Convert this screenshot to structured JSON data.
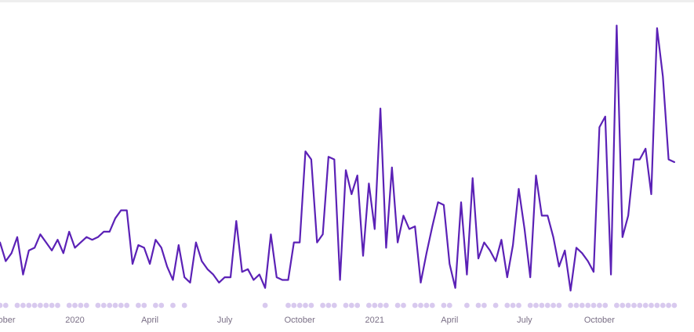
{
  "chart_data": {
    "type": "line",
    "title": "",
    "xlabel": "",
    "ylabel": "",
    "series_color": "#5b21b6",
    "marker_color": "#d8c9ee",
    "ylim": [
      0,
      100
    ],
    "x_ticks": [
      {
        "label": "October",
        "index": 0
      },
      {
        "label": "2020",
        "index": 13
      },
      {
        "label": "April",
        "index": 26
      },
      {
        "label": "July",
        "index": 39
      },
      {
        "label": "October",
        "index": 52
      },
      {
        "label": "2021",
        "index": 65
      },
      {
        "label": "April",
        "index": 78
      },
      {
        "label": "July",
        "index": 91
      },
      {
        "label": "October",
        "index": 104
      }
    ],
    "values": [
      20,
      13,
      16,
      22,
      8,
      17,
      18,
      23,
      20,
      17,
      21,
      16,
      24,
      18,
      20,
      22,
      21,
      22,
      24,
      24,
      29,
      32,
      32,
      12,
      19,
      18,
      12,
      21,
      18,
      11,
      6,
      19,
      7,
      5,
      20,
      13,
      10,
      8,
      5,
      7,
      7,
      28,
      9,
      10,
      6,
      8,
      3,
      23,
      7,
      6,
      6,
      20,
      20,
      54,
      51,
      20,
      23,
      52,
      51,
      6,
      47,
      38,
      45,
      15,
      42,
      25,
      70,
      18,
      48,
      20,
      30,
      25,
      26,
      5,
      16,
      26,
      35,
      34,
      12,
      3,
      35,
      8,
      44,
      14,
      20,
      17,
      13,
      21,
      7,
      19,
      40,
      25,
      7,
      45,
      30,
      30,
      22,
      11,
      17,
      2,
      18,
      16,
      13,
      9,
      63,
      67,
      8,
      101,
      22,
      30,
      51,
      51,
      55,
      38,
      100,
      82,
      51,
      50
    ],
    "markers_present": [
      1,
      1,
      0,
      1,
      1,
      1,
      1,
      1,
      1,
      1,
      1,
      0,
      1,
      1,
      1,
      1,
      0,
      1,
      1,
      1,
      1,
      1,
      1,
      0,
      1,
      1,
      0,
      1,
      1,
      0,
      1,
      0,
      1,
      0,
      0,
      0,
      0,
      0,
      0,
      0,
      0,
      0,
      0,
      0,
      0,
      0,
      1,
      0,
      0,
      0,
      1,
      1,
      1,
      1,
      1,
      0,
      1,
      1,
      1,
      0,
      1,
      1,
      1,
      0,
      1,
      1,
      1,
      1,
      0,
      1,
      1,
      0,
      1,
      1,
      1,
      1,
      0,
      1,
      1,
      0,
      0,
      1,
      0,
      1,
      1,
      0,
      1,
      0,
      1,
      1,
      1,
      0,
      1,
      1,
      1,
      1,
      1,
      1,
      0,
      1,
      1,
      1,
      1,
      1,
      1,
      1,
      0,
      1,
      1,
      1,
      1,
      1,
      1,
      1,
      1,
      1,
      1,
      1
    ]
  }
}
